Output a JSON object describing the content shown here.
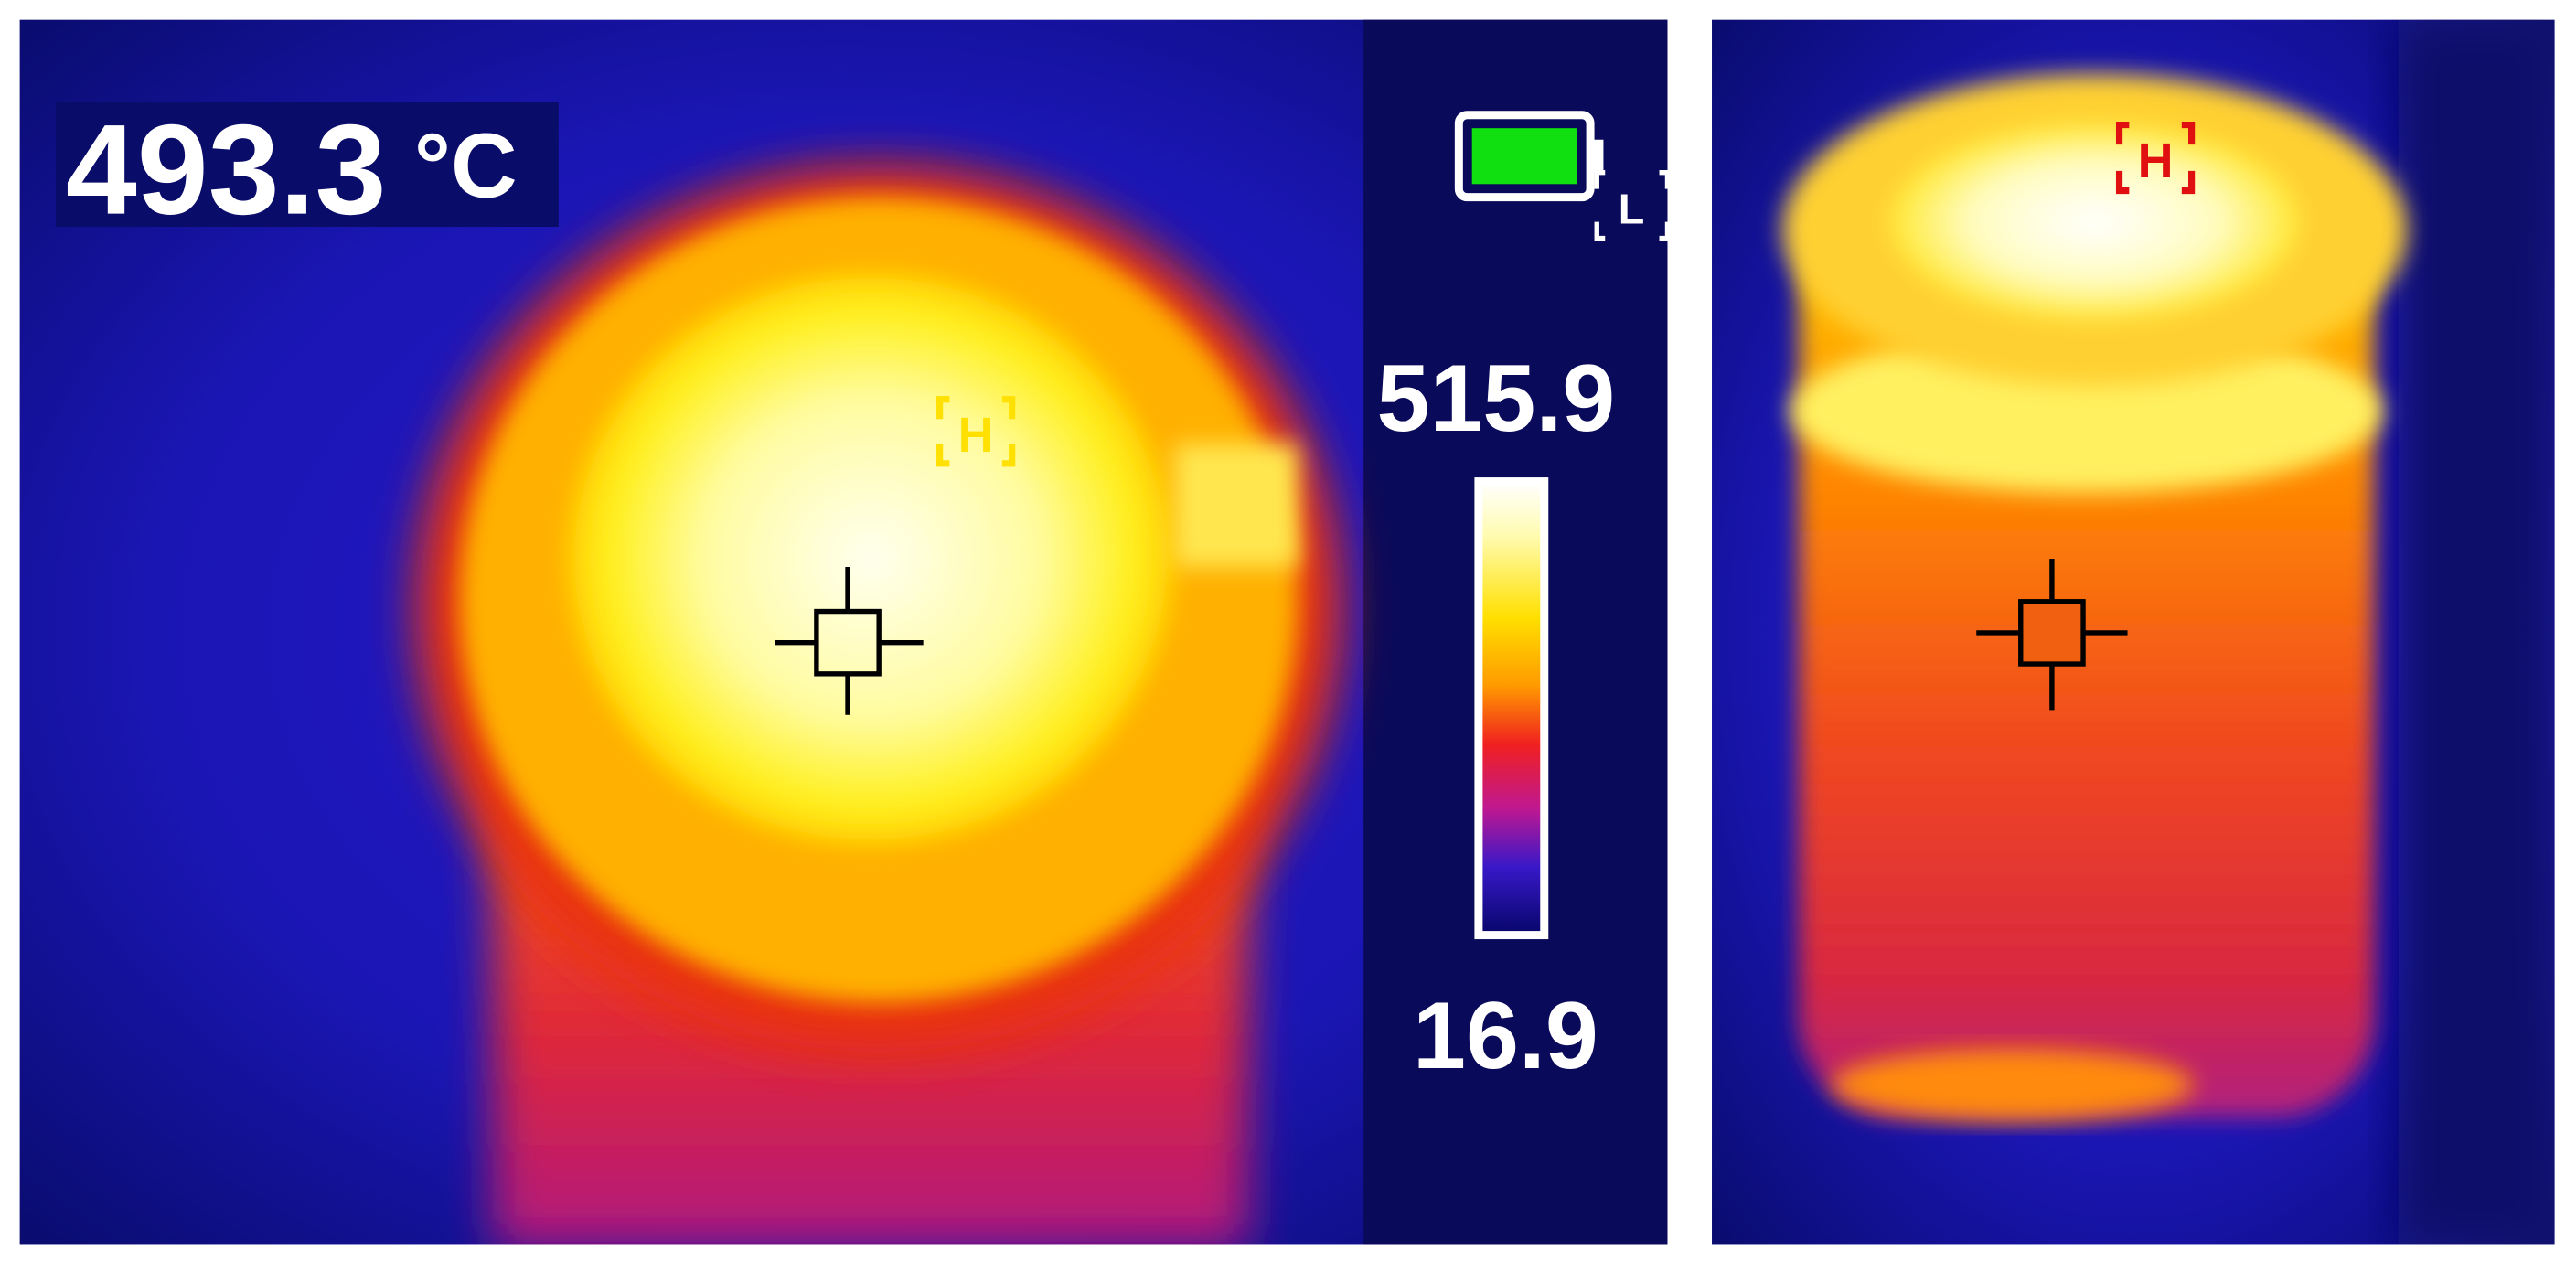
{
  "left_panel": {
    "reading": "493.3",
    "unit": "°C",
    "scale_max": "515.9",
    "scale_min": "16.9",
    "hot_marker": "H",
    "cold_marker": "L"
  },
  "right_panel": {
    "hot_marker": "H"
  }
}
